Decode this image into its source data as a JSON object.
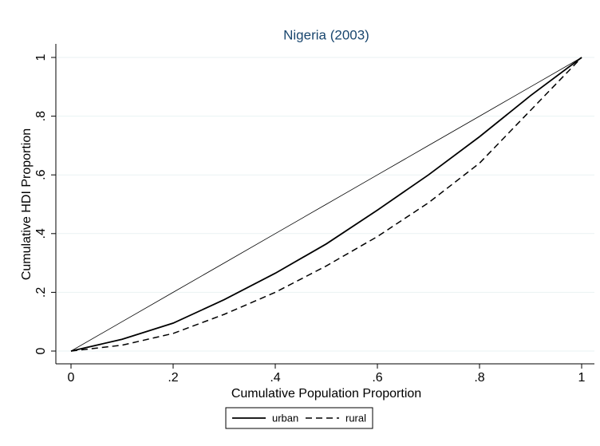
{
  "chart_data": {
    "type": "line",
    "title": "Nigeria (2003)",
    "x_label": "Cumulative Population Proportion",
    "y_label": "Cumulative HDI Proportion",
    "x": [
      0,
      0.1,
      0.2,
      0.3,
      0.4,
      0.5,
      0.6,
      0.7,
      0.8,
      0.9,
      1
    ],
    "series": [
      {
        "color": "#000000",
        "line_style": "solid",
        "width": 0.8,
        "values": [
          0,
          0.1,
          0.2,
          0.3,
          0.4,
          0.5,
          0.6,
          0.7,
          0.8,
          0.9,
          1
        ]
      },
      {
        "name": "urban",
        "color": "#000000",
        "line_style": "solid",
        "width": 1.8,
        "values": [
          0,
          0.04,
          0.095,
          0.175,
          0.265,
          0.365,
          0.48,
          0.6,
          0.73,
          0.87,
          1
        ]
      },
      {
        "name": "rural",
        "color": "#000000",
        "line_style": "dashed",
        "width": 1.5,
        "values": [
          0,
          0.02,
          0.06,
          0.125,
          0.2,
          0.29,
          0.39,
          0.505,
          0.64,
          0.82,
          1
        ]
      }
    ],
    "xlim": [
      0,
      1
    ],
    "ylim": [
      0,
      1
    ],
    "xticks": [
      0,
      {
        "value": 0.2,
        "label": ".2"
      },
      {
        "value": 0.4,
        "label": ".4"
      },
      {
        "value": 0.6,
        "label": ".6"
      },
      {
        "value": 0.8,
        "label": ".8"
      },
      1
    ],
    "yticks": [
      0,
      {
        "value": 0.2,
        "label": ".2"
      },
      {
        "value": 0.4,
        "label": ".4"
      },
      {
        "value": 0.6,
        "label": ".6"
      },
      {
        "value": 0.8,
        "label": ".8"
      },
      1
    ],
    "grid": true,
    "legend": "bottom",
    "title_color": "#1a476f"
  }
}
